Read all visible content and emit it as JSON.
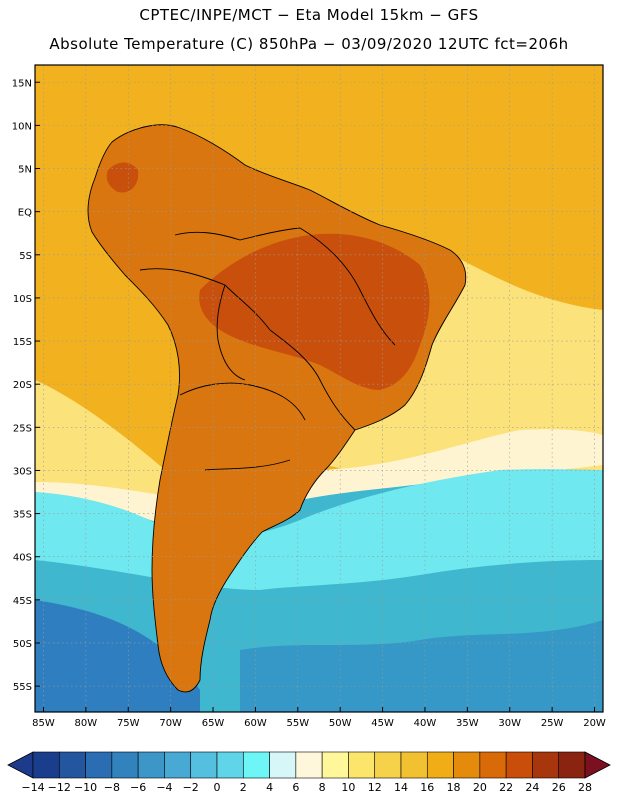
{
  "header": {
    "line1": "CPTEC/INPE/MCT −  Eta Model 15km − GFS",
    "line2": "Absolute Temperature (C) 850hPa − 03/09/2020 12UTC fct=206h"
  },
  "map": {
    "lat_labels": [
      "15N",
      "10N",
      "5N",
      "EQ",
      "5S",
      "10S",
      "15S",
      "20S",
      "25S",
      "30S",
      "35S",
      "40S",
      "45S",
      "50S",
      "55S"
    ],
    "lat_values": [
      15,
      10,
      5,
      0,
      -5,
      -10,
      -15,
      -20,
      -25,
      -30,
      -35,
      -40,
      -45,
      -50,
      -55
    ],
    "lon_labels": [
      "85W",
      "80W",
      "75W",
      "70W",
      "65W",
      "60W",
      "55W",
      "50W",
      "45W",
      "40W",
      "35W",
      "30W",
      "25W",
      "20W"
    ],
    "lon_values": [
      -85,
      -80,
      -75,
      -70,
      -65,
      -60,
      -55,
      -50,
      -45,
      -40,
      -35,
      -30,
      -25,
      -20
    ],
    "lat_range": [
      -58,
      17
    ],
    "lon_range": [
      -86,
      -19
    ]
  },
  "colorbar": {
    "labels": [
      "-14",
      "-12",
      "-10",
      "-8",
      "-6",
      "-4",
      "-2",
      "0",
      "2",
      "4",
      "6",
      "8",
      "10",
      "12",
      "14",
      "16",
      "18",
      "20",
      "22",
      "24",
      "26",
      "28"
    ],
    "colors": [
      "#1a3e8c",
      "#2456a0",
      "#2b6db3",
      "#3182bd",
      "#3d96c8",
      "#48aad4",
      "#55bfe0",
      "#60d5ea",
      "#6ef5f5",
      "#d6f6f8",
      "#fff7dc",
      "#fff79a",
      "#fbe56a",
      "#f6d24a",
      "#f2c132",
      "#f0ad15",
      "#e48b0c",
      "#d96a08",
      "#c84e0a",
      "#a8360c",
      "#8a2410"
    ],
    "low_end": "#1e3a8a",
    "high_end": "#7a1020"
  },
  "colors": {
    "ocean_warm": "#f2b11f",
    "land": "#d9760f",
    "interior_hot": "#c9500c",
    "ocean_cold": "#3fb7cf",
    "deep_south": "#2f7fc0",
    "cool_band": "#6fe8ef",
    "pale": "#fff4d2",
    "yellow": "#fce27a"
  }
}
